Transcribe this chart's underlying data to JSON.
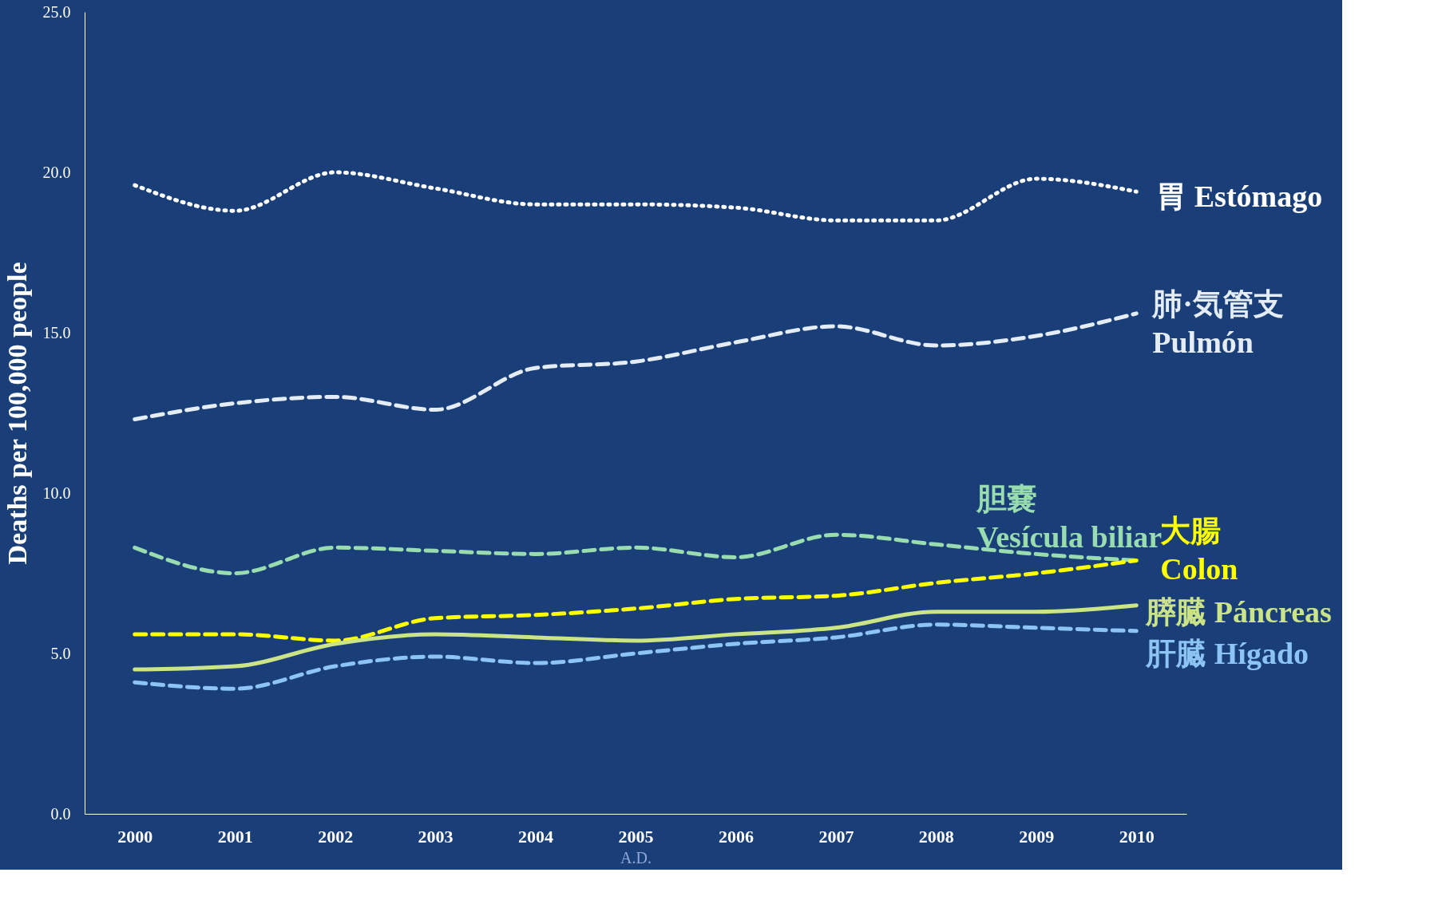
{
  "chart_data": {
    "type": "line",
    "xlabel": "A.D.",
    "ylabel": "Deaths per 100,000 people",
    "categories": [
      "2000",
      "2001",
      "2002",
      "2003",
      "2004",
      "2005",
      "2006",
      "2007",
      "2008",
      "2009",
      "2010"
    ],
    "ylim": [
      0,
      25
    ],
    "yticks": [
      {
        "value": 0,
        "label": "0.0"
      },
      {
        "value": 5,
        "label": "5.0"
      },
      {
        "value": 10,
        "label": "10.0"
      },
      {
        "value": 15,
        "label": "15.0"
      },
      {
        "value": 20,
        "label": "20.0"
      },
      {
        "value": 25,
        "label": "25.0"
      }
    ],
    "grid": false,
    "legend": false,
    "marker": "none",
    "series": [
      {
        "name": "胃   Estómago",
        "color": "#ffffff",
        "line_style": "dotted",
        "values": [
          19.6,
          18.8,
          20.0,
          19.5,
          19.0,
          19.0,
          18.9,
          18.5,
          18.5,
          19.8,
          19.4
        ]
      },
      {
        "name": "肺·気管支\nPulmón",
        "color": "#e4ecf6",
        "line_style": "dashed",
        "values": [
          12.3,
          12.8,
          13.0,
          12.6,
          13.9,
          14.1,
          14.7,
          15.2,
          14.6,
          14.9,
          15.6
        ]
      },
      {
        "name": "胆嚢\nVesícula biliar",
        "color": "#98dcb0",
        "line_style": "dashed",
        "values": [
          8.3,
          7.5,
          8.3,
          8.2,
          8.1,
          8.3,
          8.0,
          8.7,
          8.4,
          8.1,
          7.9
        ]
      },
      {
        "name": "大腸\nColon",
        "color": "#ffff00",
        "line_style": "dashed",
        "values": [
          5.6,
          5.6,
          5.4,
          6.1,
          6.2,
          6.4,
          6.7,
          6.8,
          7.2,
          7.5,
          7.9
        ]
      },
      {
        "name": "膵臓 Páncreas",
        "color": "#cce488",
        "line_style": "solid",
        "values": [
          4.5,
          4.6,
          5.3,
          5.6,
          5.5,
          5.4,
          5.6,
          5.8,
          6.3,
          6.3,
          6.5
        ]
      },
      {
        "name": "肝臓 Hígado",
        "color": "#8cc4f4",
        "line_style": "dashed",
        "values": [
          4.1,
          3.9,
          4.6,
          4.9,
          4.7,
          5.0,
          5.3,
          5.5,
          5.9,
          5.8,
          5.7
        ]
      }
    ]
  }
}
